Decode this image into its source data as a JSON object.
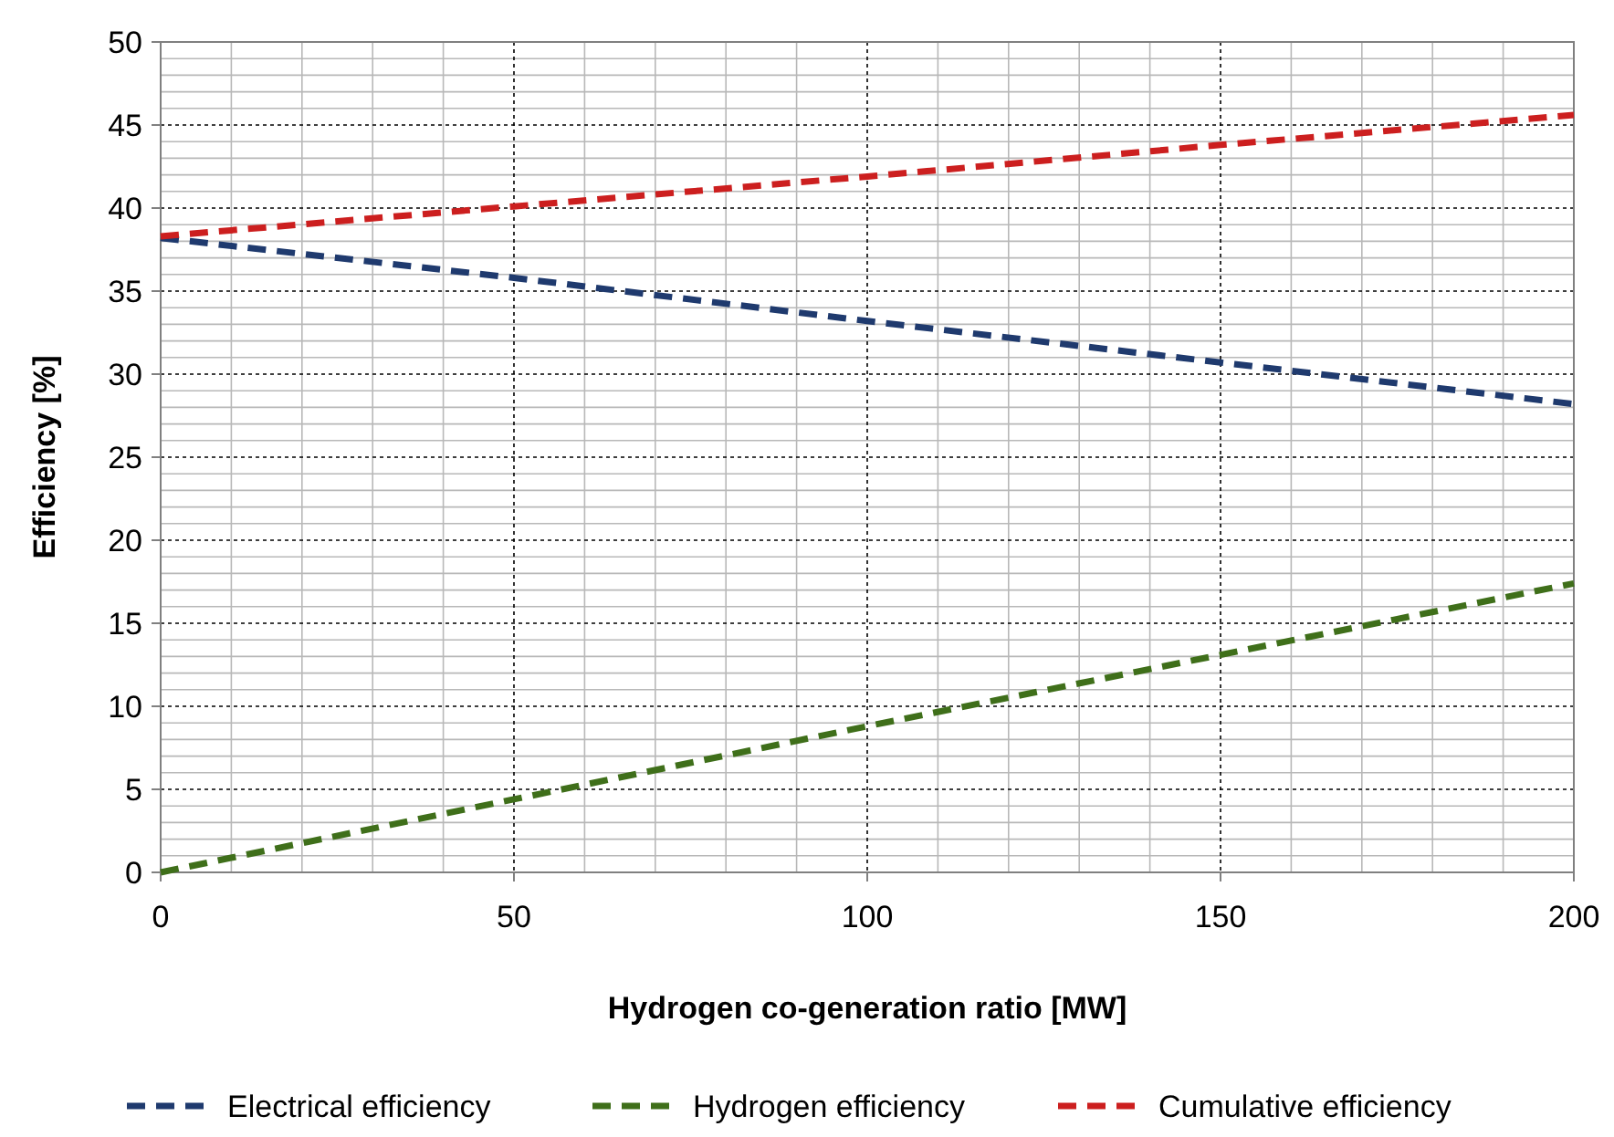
{
  "chart_data": {
    "type": "line",
    "xlabel": "Hydrogen co-generation ratio [MW]",
    "ylabel": "Efficiency [%]",
    "x": [
      0,
      50,
      100,
      150,
      200
    ],
    "series": [
      {
        "name": "Electrical efficiency",
        "color": "#1f3a6e",
        "values": [
          38.2,
          35.8,
          33.2,
          30.7,
          28.2
        ]
      },
      {
        "name": "Hydrogen efficiency",
        "color": "#3f6f1a",
        "values": [
          0,
          4.4,
          8.8,
          13.1,
          17.4
        ]
      },
      {
        "name": "Cumulative efficiency",
        "color": "#cc1f1f",
        "values": [
          38.3,
          40.1,
          41.9,
          43.8,
          45.6
        ]
      }
    ],
    "xlim": [
      0,
      200
    ],
    "xticks": [
      0,
      50,
      100,
      150,
      200
    ],
    "ylim": [
      0,
      50
    ],
    "yticks": [
      0,
      5,
      10,
      15,
      20,
      25,
      30,
      35,
      40,
      45,
      50
    ],
    "grid": true,
    "legend": "bottom",
    "line_style": "dashed",
    "marker": "none"
  }
}
